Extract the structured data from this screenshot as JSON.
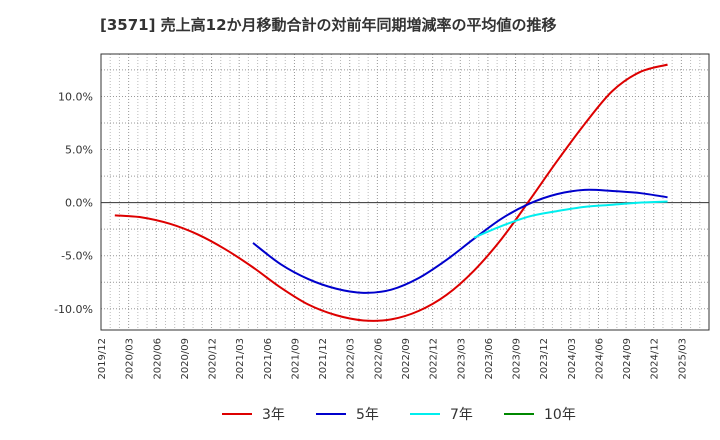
{
  "title": "[3571]  売上高12か月移動合計の対前年同期増減率の平均値の推移",
  "chart_data": {
    "type": "line",
    "title": "[3571]  売上高12か月移動合計の対前年同期増減率の平均値の推移",
    "xlabel": "",
    "ylabel": "",
    "x_ticks": [
      "2019/12",
      "2020/03",
      "2020/06",
      "2020/09",
      "2020/12",
      "2021/03",
      "2021/06",
      "2021/09",
      "2021/12",
      "2022/03",
      "2022/06",
      "2022/09",
      "2022/12",
      "2023/03",
      "2023/06",
      "2023/09",
      "2023/12",
      "2024/03",
      "2024/06",
      "2024/09",
      "2024/12",
      "2025/03"
    ],
    "y_ticks": [
      10.0,
      5.0,
      0.0,
      -5.0,
      -10.0
    ],
    "y_tick_labels": [
      "10.0%",
      "5.0%",
      "0.0%",
      "-5.0%",
      "-10.0%"
    ],
    "ylim": [
      -12.0,
      14.0
    ],
    "grid": true,
    "legend_position": "bottom",
    "series": [
      {
        "name": "3年",
        "color": "#dd0000",
        "points": [
          [
            "2019/12",
            -1.2
          ],
          [
            "2020/03",
            -1.4
          ],
          [
            "2020/06",
            -2.0
          ],
          [
            "2020/09",
            -3.0
          ],
          [
            "2020/12",
            -4.4
          ],
          [
            "2021/03",
            -6.1
          ],
          [
            "2021/06",
            -8.0
          ],
          [
            "2021/09",
            -9.6
          ],
          [
            "2021/12",
            -10.6
          ],
          [
            "2022/03",
            -11.1
          ],
          [
            "2022/06",
            -11.0
          ],
          [
            "2022/09",
            -10.2
          ],
          [
            "2022/12",
            -8.7
          ],
          [
            "2023/03",
            -6.4
          ],
          [
            "2023/06",
            -3.4
          ],
          [
            "2023/09",
            0.2
          ],
          [
            "2023/12",
            3.9
          ],
          [
            "2024/03",
            7.4
          ],
          [
            "2024/06",
            10.5
          ],
          [
            "2024/09",
            12.3
          ],
          [
            "2024/12",
            13.0
          ]
        ]
      },
      {
        "name": "5年",
        "color": "#0000cc",
        "points": [
          [
            "2021/03",
            -3.8
          ],
          [
            "2021/06",
            -5.8
          ],
          [
            "2021/09",
            -7.2
          ],
          [
            "2021/12",
            -8.1
          ],
          [
            "2022/03",
            -8.5
          ],
          [
            "2022/06",
            -8.2
          ],
          [
            "2022/09",
            -7.1
          ],
          [
            "2022/12",
            -5.4
          ],
          [
            "2023/03",
            -3.4
          ],
          [
            "2023/06",
            -1.5
          ],
          [
            "2023/09",
            -0.1
          ],
          [
            "2023/12",
            0.8
          ],
          [
            "2024/03",
            1.2
          ],
          [
            "2024/06",
            1.1
          ],
          [
            "2024/09",
            0.9
          ],
          [
            "2024/12",
            0.5
          ]
        ]
      },
      {
        "name": "7年",
        "color": "#00eeee",
        "points": [
          [
            "2023/03",
            -3.3
          ],
          [
            "2023/06",
            -2.2
          ],
          [
            "2023/09",
            -1.3
          ],
          [
            "2023/12",
            -0.8
          ],
          [
            "2024/03",
            -0.4
          ],
          [
            "2024/06",
            -0.2
          ],
          [
            "2024/09",
            0.0
          ],
          [
            "2024/12",
            0.1
          ]
        ]
      },
      {
        "name": "10年",
        "color": "#008800",
        "points": []
      }
    ]
  }
}
